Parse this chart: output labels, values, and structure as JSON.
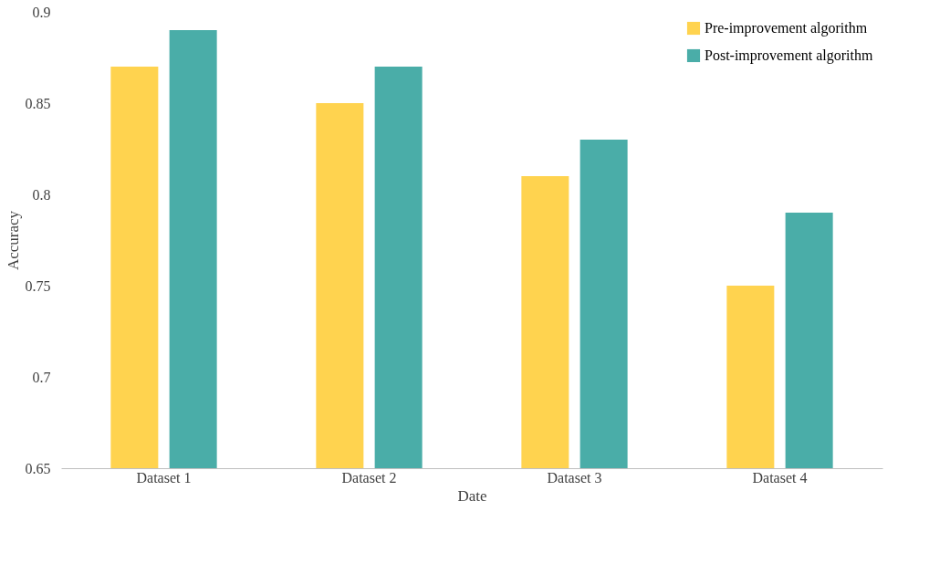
{
  "chart_data": {
    "type": "bar",
    "xlabel": "Date",
    "ylabel": "Accuracy",
    "categories": [
      "Dataset 1",
      "Dataset 2",
      "Dataset 3",
      "Dataset 4"
    ],
    "series": [
      {
        "name": "Pre-improvement algorithm",
        "color": "#ffd34f",
        "values": [
          0.87,
          0.85,
          0.81,
          0.75
        ]
      },
      {
        "name": "Post-improvement algorithm",
        "color": "#4aada8",
        "values": [
          0.89,
          0.87,
          0.83,
          0.79
        ]
      }
    ],
    "ylim": [
      0.65,
      0.9
    ],
    "yticks": [
      0.65,
      0.7,
      0.75,
      0.8,
      0.85,
      0.9
    ],
    "grid": false,
    "legend": "top right"
  }
}
